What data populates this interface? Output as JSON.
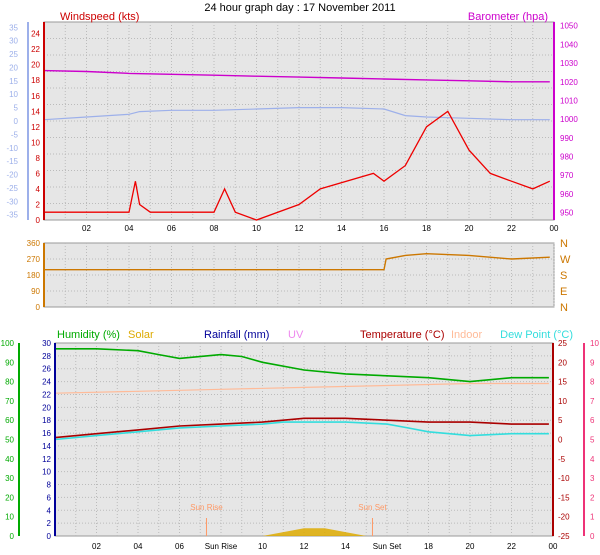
{
  "title": "24 hour graph day : 17 November 2011",
  "x_ticks": [
    "02",
    "04",
    "06",
    "08",
    "10",
    "12",
    "14",
    "16",
    "18",
    "20",
    "22",
    "00"
  ],
  "x_ticks_bottom": [
    "02",
    "04",
    "06",
    "Sun Rise",
    "10",
    "12",
    "14",
    "Sun Set",
    "18",
    "20",
    "22",
    "00"
  ],
  "colors": {
    "windspeed": "#ee0000",
    "windavg": "#0000cc",
    "baro": "#cc00cc",
    "temp_left": "#9db0ea",
    "wdir": "#cc7700",
    "hum": "#00aa00",
    "solar": "#ddaa00",
    "rain": "#000099",
    "uv": "#ee88ee",
    "temp": "#aa0000",
    "indoor": "#ffbb99",
    "dew": "#33dddd",
    "plot_bg": "#e6e6e6"
  },
  "chart_data": [
    {
      "type": "line",
      "title": "Windspeed / Barometer",
      "labels": {
        "windspeed": "Windspeed (kts)",
        "barometer": "Barometer (hpa)"
      },
      "y_left_wind_ticks": [
        "0",
        "2",
        "4",
        "6",
        "8",
        "10",
        "12",
        "14",
        "16",
        "18",
        "20",
        "22",
        "24"
      ],
      "y_left_temp_ticks": [
        "-35",
        "-30",
        "-25",
        "-20",
        "-15",
        "-10",
        "-5",
        "0",
        "5",
        "10",
        "15",
        "20",
        "25",
        "30",
        "35"
      ],
      "y_right_ticks": [
        "950",
        "960",
        "970",
        "980",
        "990",
        "1000",
        "1010",
        "1020",
        "1030",
        "1040",
        "1050"
      ],
      "series": [
        {
          "name": "Windspeed (kts)",
          "x": [
            0,
            4,
            4.3,
            4.5,
            5,
            8,
            8.5,
            9,
            10,
            12,
            13,
            15.5,
            16,
            17,
            18,
            19,
            20,
            21,
            22,
            23,
            23.8
          ],
          "values": [
            1,
            1,
            5,
            2,
            1,
            1,
            4,
            1,
            0,
            2,
            4,
            6,
            5,
            7,
            12,
            14,
            9,
            6,
            5,
            4,
            5
          ]
        },
        {
          "name": "Barometer (hpa)",
          "x": [
            0,
            2,
            4,
            6,
            8,
            10,
            12,
            14,
            16,
            18,
            20,
            22,
            23.8
          ],
          "values": [
            1026,
            1025.5,
            1024.5,
            1024,
            1023.5,
            1023,
            1022.5,
            1022,
            1021.5,
            1021,
            1020.5,
            1020,
            1020
          ]
        },
        {
          "name": "Temperature",
          "x": [
            0,
            2,
            4,
            4.5,
            6,
            8,
            10,
            12,
            14,
            16,
            17,
            18,
            20,
            22,
            23.8
          ],
          "values": [
            0.5,
            1.5,
            2.5,
            3.5,
            4,
            4,
            4.5,
            5,
            5,
            4.5,
            2,
            1.5,
            1,
            0.5,
            0.5
          ]
        }
      ]
    },
    {
      "type": "line",
      "title": "Wind Direction",
      "y_left_ticks": [
        "0",
        "90",
        "180",
        "270",
        "360"
      ],
      "y_right_ticks": [
        "N",
        "E",
        "S",
        "W",
        "N"
      ],
      "series": [
        {
          "name": "Wind direction",
          "x": [
            0,
            16,
            16.1,
            17,
            18,
            20,
            22,
            23.8
          ],
          "values": [
            210,
            210,
            270,
            290,
            300,
            290,
            270,
            280
          ]
        }
      ]
    },
    {
      "type": "line",
      "title": "Humidity / Rain / Temperature",
      "labels": {
        "humidity": "Humidity (%)",
        "solar": "Solar",
        "rainfall": "Rainfall (mm)",
        "uv": "UV",
        "temperature": "Temperature (°C)",
        "indoor": "Indoor",
        "dewpoint": "Dew Point (°C)"
      },
      "y_hum_ticks": [
        "0",
        "10",
        "20",
        "30",
        "40",
        "50",
        "60",
        "70",
        "80",
        "90",
        "100"
      ],
      "y_rain_ticks": [
        "0",
        "2",
        "4",
        "6",
        "8",
        "10",
        "12",
        "14",
        "16",
        "18",
        "20",
        "22",
        "24",
        "26",
        "28",
        "30"
      ],
      "y_temp_ticks": [
        "-25",
        "-20",
        "-15",
        "-10",
        "-5",
        "0",
        "5",
        "10",
        "15",
        "20",
        "25"
      ],
      "y_uv_ticks": [
        "0",
        "1",
        "2",
        "3",
        "4",
        "5",
        "6",
        "7",
        "8",
        "9",
        "10"
      ],
      "sun_labels": [
        "Sun Rise",
        "Sun Set"
      ],
      "series": [
        {
          "name": "Humidity (%)",
          "x": [
            0,
            2,
            4,
            5,
            6,
            8,
            9,
            10,
            12,
            14,
            16,
            18,
            20,
            22,
            23.8
          ],
          "values": [
            97,
            97,
            96,
            94,
            92,
            94,
            93,
            90,
            86,
            84,
            83,
            82,
            80,
            82,
            82
          ]
        },
        {
          "name": "Temperature (°C)",
          "x": [
            0,
            2,
            4,
            6,
            8,
            10,
            11,
            12,
            14,
            16,
            18,
            20,
            22,
            23.8
          ],
          "values": [
            0.5,
            1.5,
            2.5,
            3.5,
            4,
            4.5,
            5,
            5.5,
            5.5,
            5,
            4.5,
            4.5,
            4,
            4
          ]
        },
        {
          "name": "Dew Point (°C)",
          "x": [
            0,
            2,
            4,
            6,
            8,
            10,
            11,
            12,
            14,
            16,
            17,
            18,
            20,
            22,
            23.8
          ],
          "values": [
            0,
            1,
            2,
            3,
            3.5,
            4,
            4.5,
            4.5,
            4.5,
            4,
            3,
            2,
            1,
            1.5,
            1.5
          ]
        },
        {
          "name": "Indoor",
          "x": [
            0,
            4,
            8,
            12,
            16,
            20,
            23.8
          ],
          "values": [
            12,
            12.5,
            13,
            13.5,
            14,
            14.5,
            14.5
          ]
        },
        {
          "name": "Solar",
          "x": [
            10,
            11,
            12,
            13,
            14,
            15
          ],
          "values": [
            0,
            0.5,
            1,
            1,
            0.5,
            0
          ]
        }
      ]
    }
  ]
}
